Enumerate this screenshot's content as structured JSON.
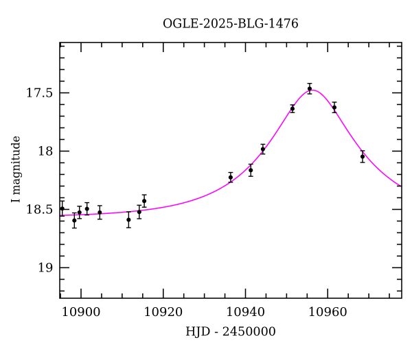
{
  "title": "OGLE-2025-BLG-1476",
  "xlabel": "HJD - 2450000",
  "ylabel": "I magnitude",
  "colors": {
    "background": "#ffffff",
    "axis": "#000000",
    "curve": "#ff00ff",
    "points": "#000000"
  },
  "chart_data": {
    "type": "scatter",
    "title": "OGLE-2025-BLG-1476",
    "xlabel": "HJD - 2450000",
    "ylabel": "I magnitude",
    "x_range": [
      10894.82,
      10978.0
    ],
    "y_range": [
      17.068,
      19.262
    ],
    "y_axis_inverted_magnitudes": true,
    "x_major_ticks": [
      10900,
      10920,
      10940,
      10960
    ],
    "x_minor_step": 5,
    "y_major_ticks": [
      17.5,
      18.0,
      18.5,
      19.0
    ],
    "y_minor_step": 0.1,
    "grid": false,
    "legend": false,
    "points": [
      {
        "x": 10895.44,
        "y": 18.493,
        "err": 0.065
      },
      {
        "x": 10898.38,
        "y": 18.595,
        "err": 0.065
      },
      {
        "x": 10899.62,
        "y": 18.526,
        "err": 0.053
      },
      {
        "x": 10901.45,
        "y": 18.495,
        "err": 0.053
      },
      {
        "x": 10904.56,
        "y": 18.526,
        "err": 0.058
      },
      {
        "x": 10911.58,
        "y": 18.589,
        "err": 0.068
      },
      {
        "x": 10914.16,
        "y": 18.522,
        "err": 0.058
      },
      {
        "x": 10915.38,
        "y": 18.428,
        "err": 0.053
      },
      {
        "x": 10936.39,
        "y": 18.225,
        "err": 0.042
      },
      {
        "x": 10941.29,
        "y": 18.164,
        "err": 0.052
      },
      {
        "x": 10944.24,
        "y": 17.983,
        "err": 0.042
      },
      {
        "x": 10951.43,
        "y": 17.636,
        "err": 0.033
      },
      {
        "x": 10955.61,
        "y": 17.464,
        "err": 0.045
      },
      {
        "x": 10961.63,
        "y": 17.625,
        "err": 0.045
      },
      {
        "x": 10968.48,
        "y": 18.047,
        "err": 0.05
      }
    ],
    "model_curve": {
      "model": "paczynski_microlensing",
      "t0": 10956.3,
      "tE": 21.0,
      "u0": 0.385,
      "baseline_mag": 18.571,
      "peak_mag": 17.475,
      "color": "#ff00ff"
    }
  }
}
